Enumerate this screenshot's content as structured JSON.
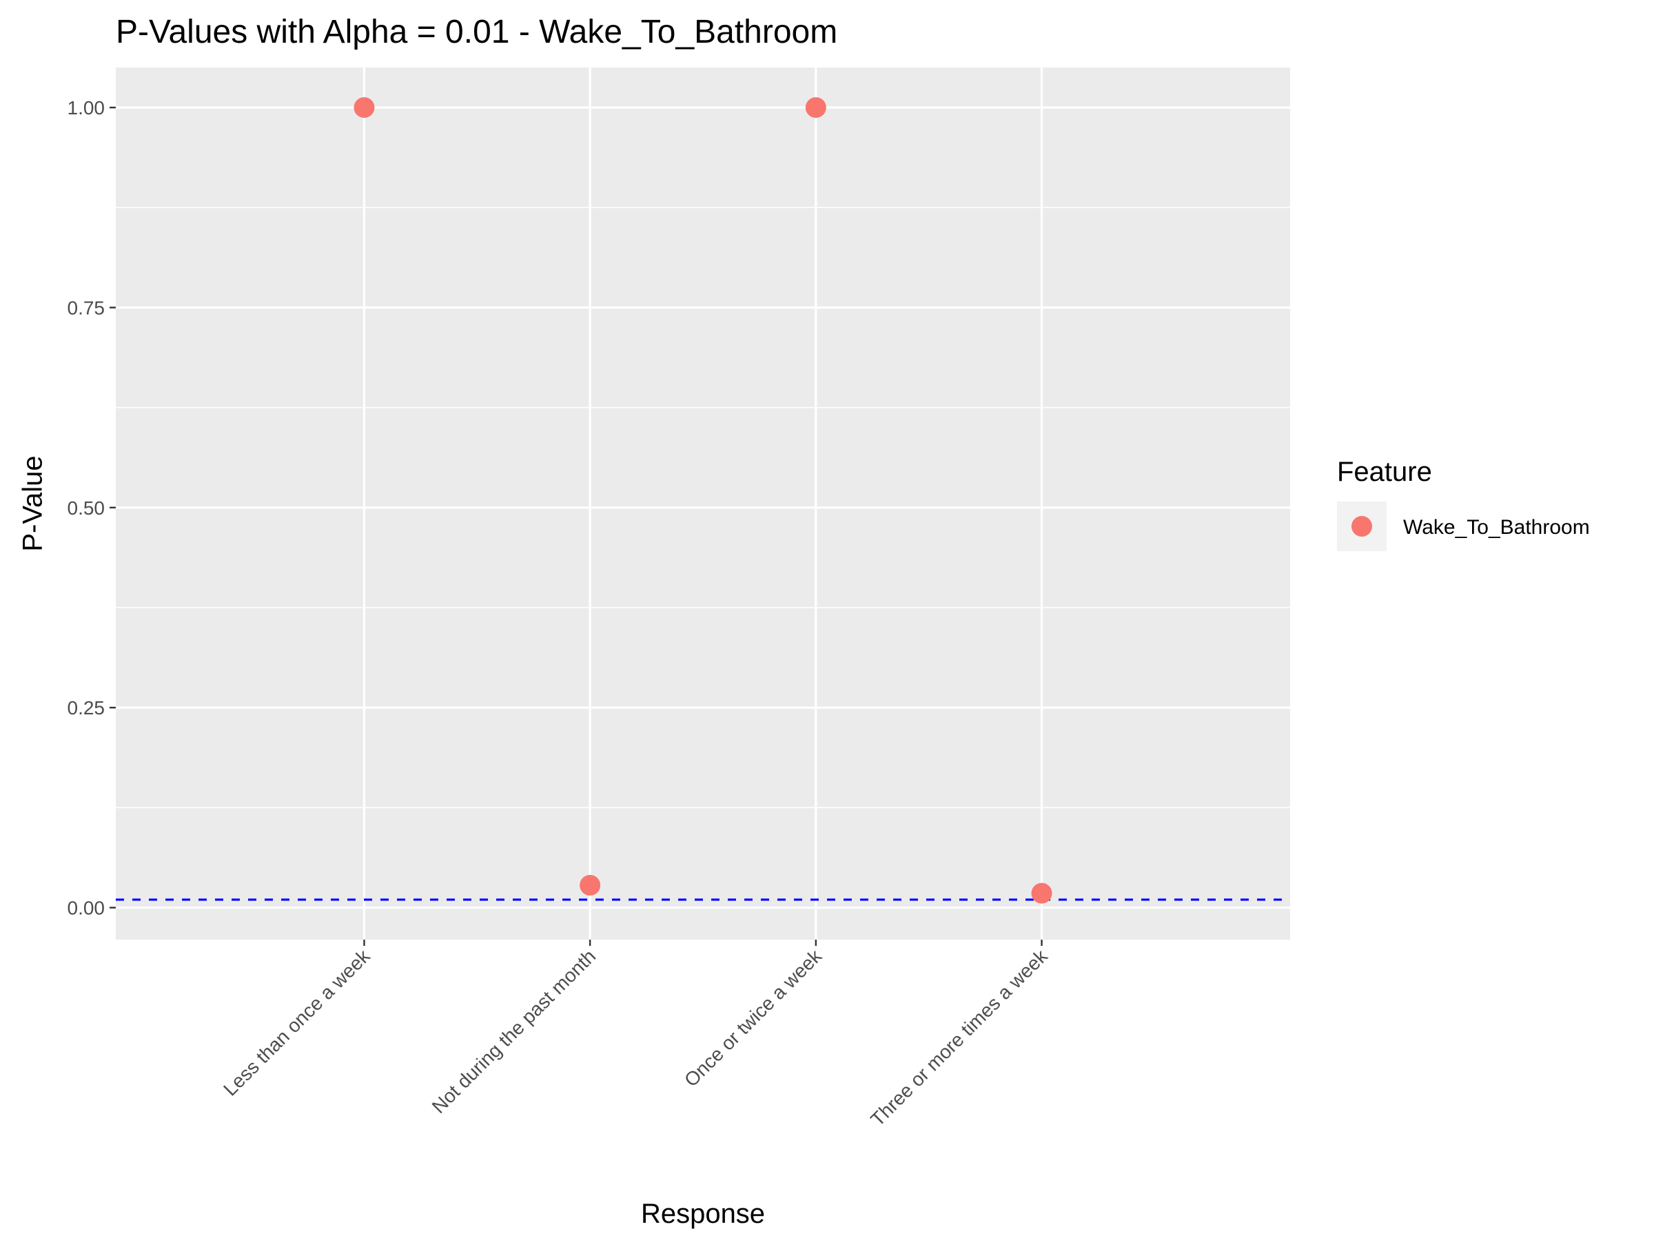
{
  "chart_data": {
    "type": "scatter",
    "title": "P-Values with Alpha = 0.01 - Wake_To_Bathroom",
    "xlabel": "Response",
    "ylabel": "P-Value",
    "categories": [
      "Less than once a week",
      "Not during the past month",
      "Once or twice a week",
      "Three or more times a week"
    ],
    "series": [
      {
        "name": "Wake_To_Bathroom",
        "color": "#F8766D",
        "values": [
          1.0,
          0.028,
          1.0,
          0.018
        ]
      }
    ],
    "alpha_line": {
      "value": 0.01,
      "color": "#0000FF",
      "style": "dashed"
    },
    "ylim": [
      -0.04,
      1.05
    ],
    "yticks": [
      {
        "value": 0.0,
        "label": "0.00"
      },
      {
        "value": 0.25,
        "label": "0.25"
      },
      {
        "value": 0.5,
        "label": "0.50"
      },
      {
        "value": 0.75,
        "label": "0.75"
      },
      {
        "value": 1.0,
        "label": "1.00"
      }
    ],
    "grid": true,
    "legend": {
      "title": "Feature",
      "placement": "right"
    },
    "panel_color": "#EBEBEB",
    "grid_color": "#FFFFFF"
  }
}
